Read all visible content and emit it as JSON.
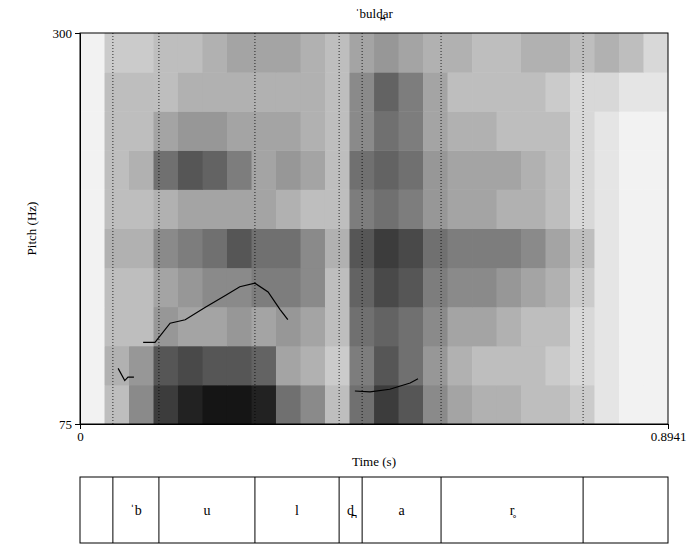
{
  "chart_data": {
    "type": "spectrogram",
    "title": "ˈbuld̪ar",
    "x_label": "Time (s)",
    "y_label": "Pitch (Hz)",
    "xlim": [
      0,
      0.8941
    ],
    "xticks": [
      0,
      0.8941
    ],
    "ylim": [
      75,
      300
    ],
    "yticks": [
      75,
      300
    ],
    "cell_x": [
      0,
      0.0373,
      0.0745,
      0.1118,
      0.149,
      0.1863,
      0.2235,
      0.2608,
      0.298,
      0.3353,
      0.3725,
      0.4098,
      0.4471,
      0.4843,
      0.5216,
      0.5588,
      0.5961,
      0.6333,
      0.6706,
      0.7078,
      0.7451,
      0.7823,
      0.8196,
      0.8568,
      0.8941
    ],
    "cell_y": [
      75,
      97.5,
      120,
      142.5,
      165,
      187.5,
      210,
      232.5,
      255,
      277.5,
      300
    ],
    "cells": [
      [
        0.1,
        0.3,
        0.5,
        0.8,
        0.9,
        0.95,
        0.95,
        0.9,
        0.6,
        0.5,
        0.3,
        0.6,
        0.8,
        0.7,
        0.5,
        0.4,
        0.35,
        0.35,
        0.3,
        0.3,
        0.25,
        0.15,
        0.1,
        0.1
      ],
      [
        0.1,
        0.35,
        0.45,
        0.7,
        0.75,
        0.7,
        0.7,
        0.65,
        0.4,
        0.35,
        0.25,
        0.55,
        0.7,
        0.6,
        0.45,
        0.35,
        0.3,
        0.3,
        0.3,
        0.25,
        0.2,
        0.15,
        0.1,
        0.1
      ],
      [
        0.1,
        0.3,
        0.3,
        0.45,
        0.4,
        0.4,
        0.45,
        0.4,
        0.45,
        0.4,
        0.3,
        0.6,
        0.65,
        0.6,
        0.5,
        0.4,
        0.4,
        0.35,
        0.3,
        0.3,
        0.2,
        0.15,
        0.1,
        0.1
      ],
      [
        0.1,
        0.3,
        0.3,
        0.4,
        0.45,
        0.5,
        0.5,
        0.55,
        0.55,
        0.5,
        0.3,
        0.65,
        0.75,
        0.7,
        0.55,
        0.5,
        0.5,
        0.45,
        0.4,
        0.35,
        0.25,
        0.15,
        0.1,
        0.1
      ],
      [
        0.1,
        0.35,
        0.35,
        0.5,
        0.55,
        0.6,
        0.7,
        0.6,
        0.6,
        0.5,
        0.35,
        0.7,
        0.8,
        0.75,
        0.6,
        0.55,
        0.55,
        0.55,
        0.5,
        0.4,
        0.3,
        0.15,
        0.1,
        0.1
      ],
      [
        0.1,
        0.3,
        0.3,
        0.35,
        0.4,
        0.4,
        0.4,
        0.4,
        0.35,
        0.3,
        0.3,
        0.55,
        0.6,
        0.55,
        0.45,
        0.4,
        0.4,
        0.35,
        0.35,
        0.3,
        0.2,
        0.15,
        0.1,
        0.1
      ],
      [
        0.1,
        0.3,
        0.35,
        0.6,
        0.7,
        0.65,
        0.55,
        0.4,
        0.45,
        0.4,
        0.3,
        0.6,
        0.65,
        0.6,
        0.45,
        0.4,
        0.4,
        0.4,
        0.35,
        0.3,
        0.2,
        0.15,
        0.1,
        0.1
      ],
      [
        0.1,
        0.3,
        0.3,
        0.4,
        0.45,
        0.45,
        0.4,
        0.4,
        0.4,
        0.35,
        0.3,
        0.5,
        0.6,
        0.55,
        0.4,
        0.35,
        0.35,
        0.3,
        0.3,
        0.3,
        0.2,
        0.15,
        0.1,
        0.1
      ],
      [
        0.1,
        0.3,
        0.3,
        0.3,
        0.35,
        0.35,
        0.35,
        0.35,
        0.35,
        0.35,
        0.3,
        0.5,
        0.65,
        0.55,
        0.4,
        0.3,
        0.3,
        0.3,
        0.3,
        0.25,
        0.2,
        0.2,
        0.15,
        0.15
      ],
      [
        0.1,
        0.25,
        0.25,
        0.3,
        0.3,
        0.35,
        0.4,
        0.4,
        0.4,
        0.35,
        0.3,
        0.4,
        0.45,
        0.4,
        0.35,
        0.35,
        0.3,
        0.3,
        0.35,
        0.35,
        0.3,
        0.35,
        0.3,
        0.2
      ]
    ],
    "x": [
      0.058,
      0.068,
      0.073,
      0.082,
      0.089,
      0.096,
      0.114,
      0.137,
      0.16,
      0.19,
      0.221,
      0.243,
      0.266,
      0.286,
      0.304,
      0.316,
      0.37,
      0.418,
      0.441,
      0.471,
      0.502,
      0.514
    ],
    "values": [
      107,
      100,
      102,
      102,
      null,
      122,
      122,
      133,
      135,
      142,
      149,
      154,
      156,
      151,
      141,
      135,
      null,
      94,
      93.5,
      95,
      98.6,
      101
    ],
    "color": "#000000",
    "boundaries": [
      0.05,
      0.12,
      0.266,
      0.394,
      0.429,
      0.549,
      0.765
    ],
    "labels": [
      null,
      "ˈb",
      "u",
      "l",
      "d̪",
      "a",
      "r̥",
      null
    ]
  }
}
